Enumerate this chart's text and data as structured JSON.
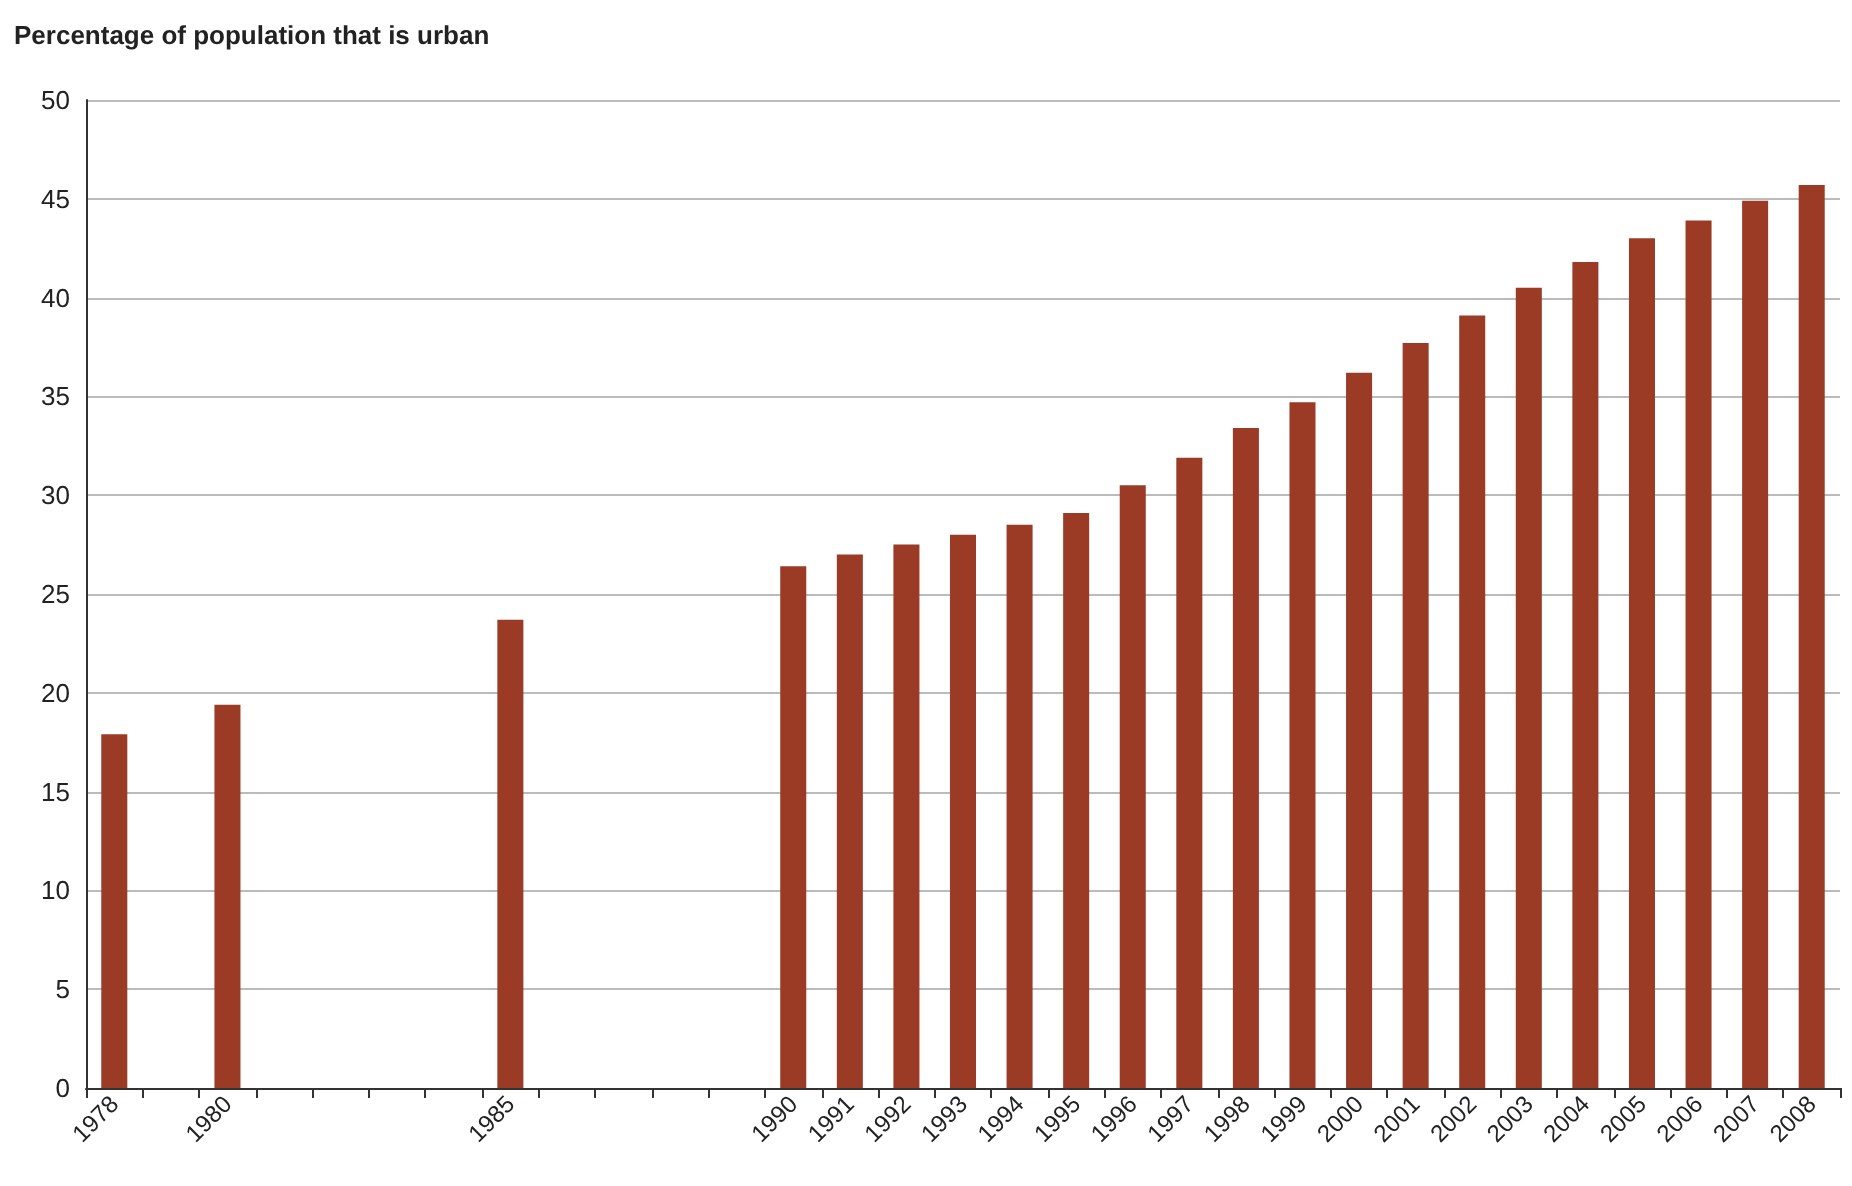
{
  "chart_data": {
    "type": "bar",
    "title": "Percentage of population that is urban",
    "categories": [
      "1978",
      null,
      "1980",
      null,
      null,
      null,
      null,
      "1985",
      null,
      null,
      null,
      null,
      "1990",
      "1991",
      "1992",
      "1993",
      "1994",
      "1995",
      "1996",
      "1997",
      "1998",
      "1999",
      "2000",
      "2001",
      "2002",
      "2003",
      "2004",
      "2005",
      "2006",
      "2007",
      "2008"
    ],
    "values": [
      17.9,
      null,
      19.4,
      null,
      null,
      null,
      null,
      23.7,
      null,
      null,
      null,
      null,
      26.4,
      27.0,
      27.5,
      28.0,
      28.5,
      29.1,
      30.5,
      31.9,
      33.4,
      34.7,
      36.2,
      37.7,
      39.1,
      40.5,
      41.8,
      43.0,
      43.9,
      44.9,
      45.7
    ],
    "color": "#9b3a25",
    "ylim": [
      0,
      50
    ],
    "yticks": [
      0,
      5,
      10,
      15,
      20,
      25,
      30,
      35,
      40,
      45,
      50
    ],
    "grid": "y"
  }
}
